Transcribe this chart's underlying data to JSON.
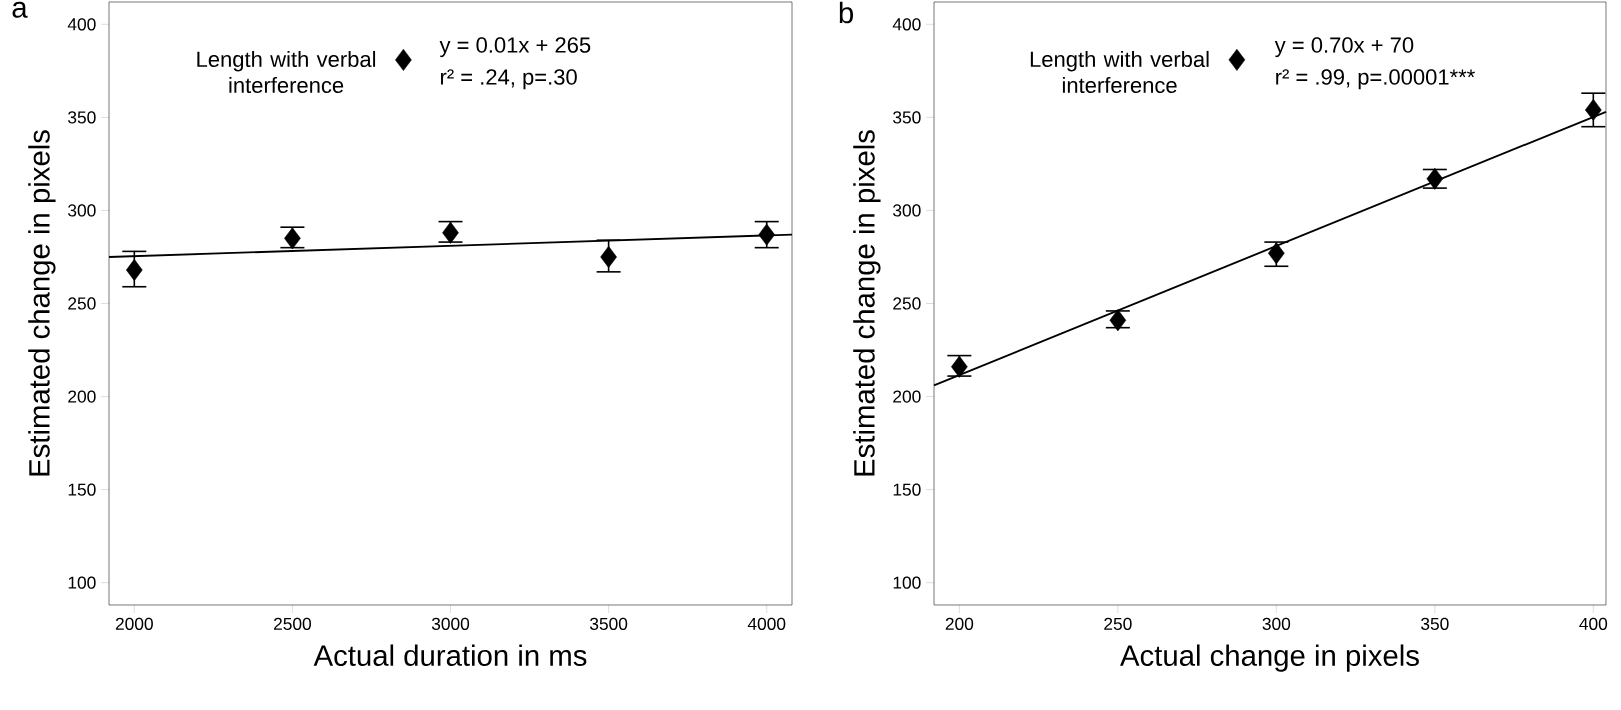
{
  "chart_data": [
    {
      "type": "scatter",
      "title": "a",
      "xlabel": "Actual duration in ms",
      "ylabel": "Estimated change in pixels",
      "xlim": [
        1920,
        4080
      ],
      "ylim": [
        88,
        412
      ],
      "xticks": [
        2000,
        2500,
        3000,
        3500,
        4000
      ],
      "yticks": [
        100,
        150,
        200,
        250,
        300,
        350,
        400
      ],
      "grid": false,
      "legend": "top",
      "marker": "diamond",
      "series": [
        {
          "name": "Length with verbal interference",
          "color": "#000000",
          "x": [
            2000,
            2500,
            3000,
            3500,
            4000
          ],
          "values": [
            268,
            285,
            288,
            275,
            287
          ],
          "errors": [
            [
              259,
              278
            ],
            [
              280,
              291
            ],
            [
              283,
              294
            ],
            [
              267,
              284
            ],
            [
              280,
              294
            ]
          ]
        },
        {
          "type": "line",
          "color": "#000000",
          "marker": "none",
          "x": [
            1920,
            4080
          ],
          "values": [
            275,
            287
          ]
        }
      ],
      "annotations": [
        "y = 0.01x + 265",
        "r² = .24, p=.30"
      ]
    },
    {
      "type": "scatter",
      "title": "b",
      "xlabel": "Actual change in pixels",
      "ylabel": "Estimated change in pixels",
      "xlim": [
        192,
        404
      ],
      "ylim": [
        88,
        412
      ],
      "xticks": [
        200,
        250,
        300,
        350,
        400
      ],
      "yticks": [
        100,
        150,
        200,
        250,
        300,
        350,
        400
      ],
      "grid": false,
      "legend": "top",
      "marker": "diamond",
      "series": [
        {
          "name": "Length with verbal interference",
          "color": "#000000",
          "x": [
            200,
            250,
            300,
            350,
            400
          ],
          "values": [
            216,
            241,
            277,
            317,
            354
          ],
          "errors": [
            [
              211,
              222
            ],
            [
              237,
              246
            ],
            [
              270,
              283
            ],
            [
              312,
              322
            ],
            [
              345,
              363
            ]
          ]
        },
        {
          "type": "line",
          "color": "#000000",
          "marker": "none",
          "x": [
            192,
            404
          ],
          "values": [
            206,
            353
          ]
        }
      ],
      "annotations": [
        "y = 0.70x + 70",
        "r² = .99, p=.00001***"
      ]
    }
  ]
}
